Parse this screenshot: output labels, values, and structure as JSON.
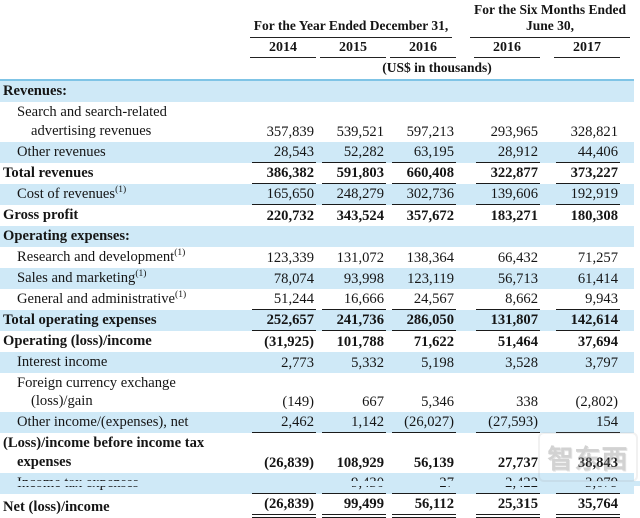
{
  "table": {
    "header": {
      "year_group_label": "For the Year Ended December 31,",
      "six_months_group_label_line1": "For the Six Months Ended",
      "six_months_group_label_line2": "June 30,",
      "year_columns": [
        "2014",
        "2015",
        "2016"
      ],
      "six_month_columns": [
        "2016",
        "2017"
      ],
      "units_note": "(US$ in thousands)"
    },
    "rows": [
      {
        "label": "Revenues:",
        "bold": true,
        "shade": true,
        "indent": 0,
        "rule": "none",
        "values": [
          "",
          "",
          "",
          "",
          ""
        ]
      },
      {
        "label": "Search and search-related",
        "label2": "advertising revenues",
        "bold": false,
        "shade": false,
        "indent": 1,
        "rule": "none",
        "values": [
          "357,839",
          "539,521",
          "597,213",
          "293,965",
          "328,821"
        ]
      },
      {
        "label": "Other revenues",
        "bold": false,
        "shade": true,
        "indent": 1,
        "rule": "single",
        "values": [
          "28,543",
          "52,282",
          "63,195",
          "28,912",
          "44,406"
        ]
      },
      {
        "label": "Total revenues",
        "bold": true,
        "shade": false,
        "indent": 0,
        "rule": "single",
        "values": [
          "386,382",
          "591,803",
          "660,408",
          "322,877",
          "373,227"
        ]
      },
      {
        "label": "Cost of revenues",
        "sup": "(1)",
        "bold": false,
        "shade": true,
        "indent": 1,
        "rule": "single",
        "values": [
          "165,650",
          "248,279",
          "302,736",
          "139,606",
          "192,919"
        ]
      },
      {
        "label": "Gross profit",
        "bold": true,
        "shade": false,
        "indent": 0,
        "rule": "none",
        "values": [
          "220,732",
          "343,524",
          "357,672",
          "183,271",
          "180,308"
        ]
      },
      {
        "label": "Operating expenses:",
        "bold": true,
        "shade": true,
        "indent": 0,
        "rule": "none",
        "values": [
          "",
          "",
          "",
          "",
          ""
        ]
      },
      {
        "label": "Research and development",
        "sup": "(1)",
        "bold": false,
        "shade": false,
        "indent": 1,
        "rule": "none",
        "values": [
          "123,339",
          "131,072",
          "138,364",
          "66,432",
          "71,257"
        ]
      },
      {
        "label": "Sales and marketing",
        "sup": "(1)",
        "bold": false,
        "shade": true,
        "indent": 1,
        "rule": "none",
        "values": [
          "78,074",
          "93,998",
          "123,119",
          "56,713",
          "61,414"
        ]
      },
      {
        "label": "General and administrative",
        "sup": "(1)",
        "bold": false,
        "shade": false,
        "indent": 1,
        "rule": "single",
        "values": [
          "51,244",
          "16,666",
          "24,567",
          "8,662",
          "9,943"
        ]
      },
      {
        "label": "Total operating expenses",
        "bold": true,
        "shade": true,
        "indent": 0,
        "rule": "single",
        "values": [
          "252,657",
          "241,736",
          "286,050",
          "131,807",
          "142,614"
        ]
      },
      {
        "label": "Operating (loss)/income",
        "bold": true,
        "shade": false,
        "indent": 0,
        "rule": "none",
        "values": [
          "(31,925)",
          "101,788",
          "71,622",
          "51,464",
          "37,694"
        ]
      },
      {
        "label": "Interest income",
        "bold": false,
        "shade": true,
        "indent": 1,
        "rule": "none",
        "values": [
          "2,773",
          "5,332",
          "5,198",
          "3,528",
          "3,797"
        ]
      },
      {
        "label": "Foreign currency exchange",
        "label2": "(loss)/gain",
        "bold": false,
        "shade": false,
        "indent": 1,
        "rule": "none",
        "values": [
          "(149)",
          "667",
          "5,346",
          "338",
          "(2,802)"
        ]
      },
      {
        "label": "Other income/(expenses), net",
        "bold": false,
        "shade": true,
        "indent": 1,
        "rule": "single",
        "values": [
          "2,462",
          "1,142",
          "(26,027)",
          "(27,593)",
          "154"
        ]
      },
      {
        "label": "(Loss)/income before income tax",
        "label2": "expenses",
        "bold": true,
        "shade": false,
        "indent": 0,
        "rule": "none",
        "values": [
          "(26,839)",
          "108,929",
          "56,139",
          "27,737",
          "38,843"
        ]
      },
      {
        "label": "Income tax expenses",
        "bold": false,
        "shade": true,
        "indent": 1,
        "rule": "single",
        "values": [
          "—",
          "9,430",
          "27",
          "2,422",
          "3,079"
        ]
      },
      {
        "label": "Net (loss)/income",
        "bold": true,
        "shade": false,
        "indent": 0,
        "rule": "double",
        "values": [
          "(26,839)",
          "99,499",
          "56,112",
          "25,315",
          "35,764"
        ]
      }
    ]
  },
  "watermark": {
    "text": "智东西"
  },
  "colors": {
    "row_shade": "#cfe9f7",
    "top_border": "#7fc4e6",
    "rule": "#1a1a1a"
  }
}
